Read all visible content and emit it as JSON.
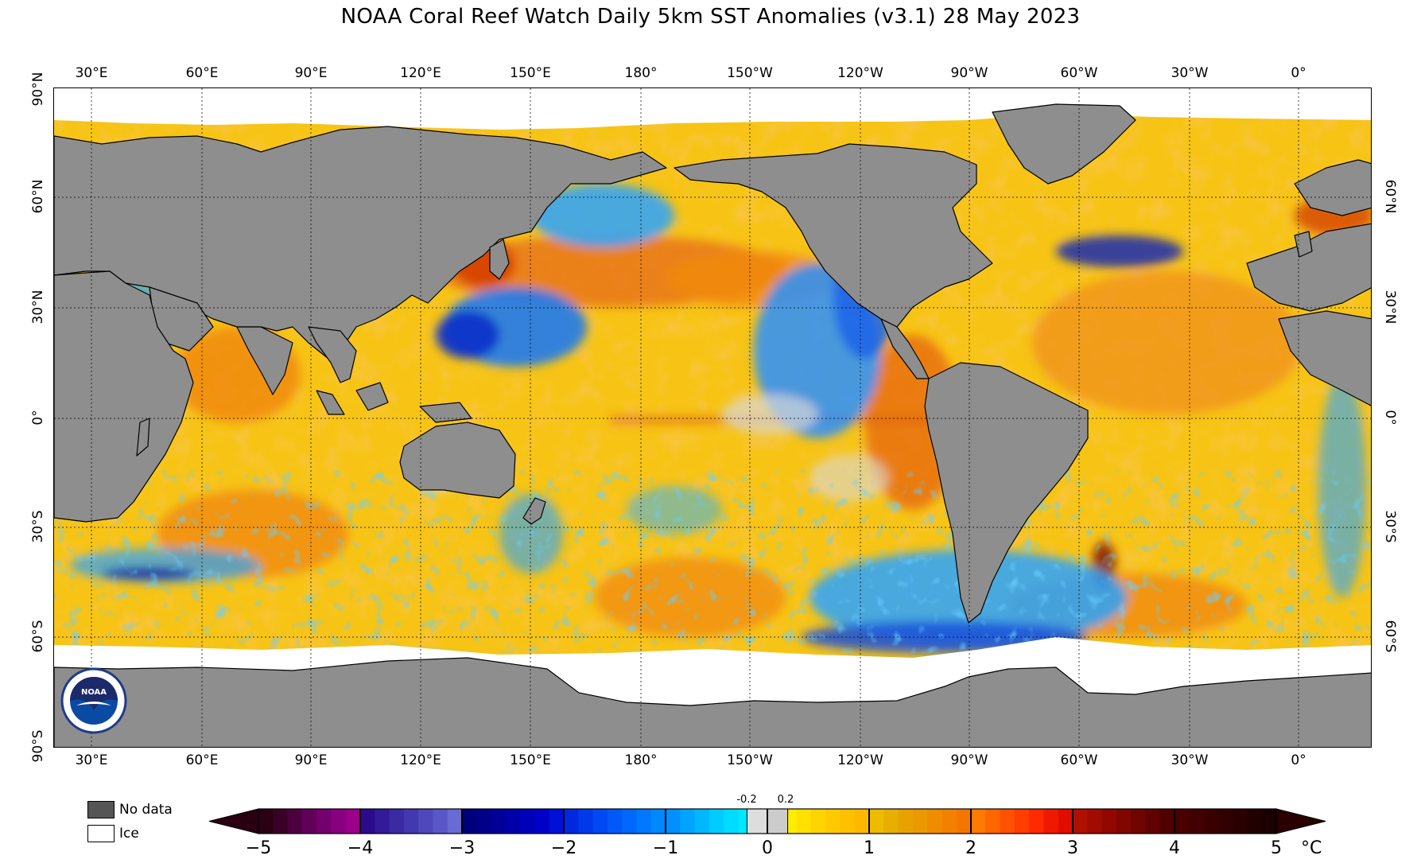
{
  "title": "NOAA Coral Reef Watch Daily 5km SST Anomalies  (v3.1)   28 May 2023",
  "lon_labels": [
    "30°E",
    "60°E",
    "90°E",
    "120°E",
    "150°E",
    "180°",
    "150°W",
    "120°W",
    "90°W",
    "60°W",
    "30°W",
    "0°"
  ],
  "lat_labels": [
    "90°N",
    "60°N",
    "30°N",
    "0°",
    "30°S",
    "60°S",
    "90°S"
  ],
  "legend": {
    "no_data_label": "No data",
    "ice_label": "Ice",
    "no_data_color": "#555555",
    "ice_color": "#ffffff"
  },
  "colorbar": {
    "ticks": [
      "−5",
      "−4",
      "−3",
      "−2",
      "−1",
      "0",
      "1",
      "2",
      "3",
      "4",
      "5"
    ],
    "small_ticks": [
      "-0.2",
      "0.2"
    ],
    "unit": "°C",
    "segments": [
      [
        "#2a0012",
        "#3a0028",
        "#4d0040",
        "#600058",
        "#740070",
        "#88007f",
        "#9a0089"
      ],
      [
        "#2c0a8c",
        "#321a98",
        "#3a2aa4",
        "#4438b0",
        "#4e48bc",
        "#5a58c8",
        "#6a6ad4"
      ],
      [
        "#00007a",
        "#000088",
        "#000098",
        "#0000a8",
        "#0000b8",
        "#0000c8",
        "#0010d6"
      ],
      [
        "#0028e0",
        "#0038ea",
        "#0048f2",
        "#0058f8",
        "#0068fc",
        "#0078ff",
        "#0088ff"
      ],
      [
        "#0090ff",
        "#00a4ff",
        "#00b8ff",
        "#00ccff",
        "#00dcff",
        "#00e8ff",
        "#20f0ff"
      ]
    ],
    "segments_pos": [
      [
        "#ffff00",
        "#ffec00",
        "#ffe000",
        "#ffd400",
        "#ffca00",
        "#ffc000",
        "#ffb800"
      ],
      [
        "#eebb00",
        "#e8ae00",
        "#e8a200",
        "#ec9800",
        "#f08c00",
        "#f48000",
        "#f47600"
      ],
      [
        "#ff7a00",
        "#ff6600",
        "#ff5200",
        "#ff3e00",
        "#ff2a00",
        "#ee1a00",
        "#e00c00"
      ],
      [
        "#b01000",
        "#a00c00",
        "#900800",
        "#800600",
        "#700400",
        "#600200",
        "#500000"
      ],
      [
        "#4a0000",
        "#420000",
        "#3a0000",
        "#320000",
        "#2a0000",
        "#220000",
        "#1a0000"
      ]
    ],
    "near_zero": [
      "#dddddd",
      "#cccccc"
    ],
    "under_color": "#2a0010",
    "over_color": "#2a0000"
  },
  "map_colors": {
    "land": "#8e8e8e",
    "ice": "#ffffff",
    "ocean_base": "#f7c415",
    "warm": "#f08a10",
    "hot": "#d23a00",
    "very_hot": "#7a0a00",
    "cool": "#29a3ff",
    "cold": "#0a4cd8",
    "very_cold": "#1a1a9a",
    "neutral": "#d8d8d8"
  }
}
